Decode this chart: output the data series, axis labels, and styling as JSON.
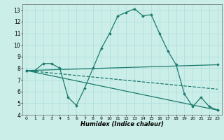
{
  "xlabel": "Humidex (Indice chaleur)",
  "background_color": "#cceee8",
  "grid_color": "#aadddd",
  "line_color": "#1a7a6e",
  "xlim": [
    -0.5,
    23.5
  ],
  "ylim": [
    4,
    13.5
  ],
  "yticks": [
    4,
    5,
    6,
    7,
    8,
    9,
    10,
    11,
    12,
    13
  ],
  "xticks": [
    0,
    1,
    2,
    3,
    4,
    5,
    6,
    7,
    8,
    9,
    10,
    11,
    12,
    13,
    14,
    15,
    16,
    17,
    18,
    19,
    20,
    21,
    22,
    23
  ],
  "series": [
    {
      "x": [
        0,
        1,
        2,
        3,
        4,
        5,
        6,
        7,
        8,
        9,
        10,
        11,
        12,
        13,
        14,
        15,
        16,
        17,
        18,
        19,
        20,
        21,
        22,
        23
      ],
      "y": [
        7.8,
        7.8,
        8.4,
        8.4,
        8.0,
        5.5,
        4.8,
        6.3,
        8.0,
        9.7,
        11.0,
        12.5,
        12.8,
        13.1,
        12.5,
        12.6,
        11.0,
        9.5,
        8.3,
        5.8,
        4.7,
        5.5,
        4.7,
        4.4
      ],
      "style": "-",
      "marker": "D",
      "markersize": 1.8,
      "linewidth": 0.9
    },
    {
      "x": [
        0,
        23
      ],
      "y": [
        7.8,
        8.3
      ],
      "style": "-",
      "marker": "D",
      "markersize": 1.8,
      "linewidth": 0.9
    },
    {
      "x": [
        0,
        23
      ],
      "y": [
        7.8,
        4.4
      ],
      "style": "-",
      "marker": "D",
      "markersize": 1.8,
      "linewidth": 0.9
    },
    {
      "x": [
        0,
        23
      ],
      "y": [
        7.8,
        6.2
      ],
      "style": "--",
      "marker": null,
      "markersize": 0,
      "linewidth": 0.9
    }
  ]
}
